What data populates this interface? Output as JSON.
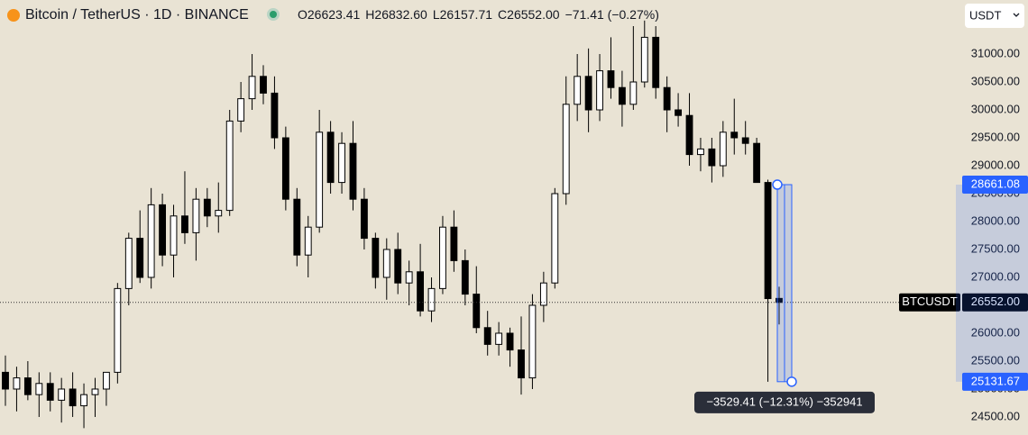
{
  "chart_data": {
    "type": "candlestick",
    "title": "Bitcoin / TetherUS · 1D · BINANCE",
    "ohlc_header": [
      {
        "key": "O",
        "value": "26623.41"
      },
      {
        "key": "H",
        "value": "26832.60"
      },
      {
        "key": "L",
        "value": "26157.71"
      },
      {
        "key": "C",
        "value": "26552.00"
      }
    ],
    "change": "−71.41 (−0.27%)",
    "currency": "USDT",
    "symbol": "BTCUSDT",
    "last_price": {
      "value": 26552,
      "label": "26552.00"
    },
    "up_color": "#ffffff",
    "down_color": "#000000",
    "open": [
      25300,
      25000,
      25200,
      24900,
      25100,
      24800,
      25000,
      24700,
      24900,
      25000,
      25300,
      26800,
      27700,
      27000,
      28300,
      27400,
      28100,
      27800,
      28400,
      28100,
      28200,
      29800,
      30200,
      30600,
      30300,
      29500,
      28400,
      27400,
      27900,
      29600,
      28700,
      29400,
      28400,
      27700,
      27000,
      27500,
      26900,
      27100,
      26400,
      26800,
      27900,
      27300,
      26700,
      26100,
      25800,
      26000,
      25700,
      25200,
      26500,
      26900,
      28500,
      30100,
      30600,
      30000,
      30700,
      30400,
      30100,
      30500,
      31300,
      30400,
      30000,
      29900,
      29200,
      29300,
      29000,
      29600,
      29500,
      29400,
      28700,
      26623.41
    ],
    "high": [
      25600,
      25400,
      25500,
      25300,
      25300,
      25200,
      25300,
      25100,
      25200,
      25300,
      26900,
      27800,
      28200,
      28600,
      28500,
      28300,
      28900,
      28600,
      28600,
      28700,
      30000,
      30500,
      31000,
      30800,
      30600,
      29700,
      28600,
      28100,
      30000,
      29800,
      29600,
      29800,
      28600,
      27800,
      27700,
      27800,
      27300,
      27600,
      27000,
      28100,
      28200,
      27500,
      27200,
      26400,
      26200,
      26100,
      26300,
      26700,
      27100,
      28600,
      30600,
      31000,
      31100,
      31000,
      31300,
      30700,
      31500,
      31600,
      31500,
      30600,
      30300,
      30300,
      29500,
      29500,
      29800,
      30200,
      29800,
      29500,
      28750,
      26832.6
    ],
    "low": [
      24700,
      24600,
      24800,
      24500,
      24600,
      24400,
      24500,
      24300,
      24500,
      24700,
      25100,
      26500,
      26900,
      26800,
      27200,
      27000,
      27600,
      27300,
      27900,
      27800,
      28100,
      29600,
      30000,
      30100,
      29300,
      28200,
      27200,
      27000,
      27800,
      28500,
      28500,
      28200,
      27500,
      26800,
      26600,
      26700,
      26500,
      26300,
      26200,
      26700,
      27100,
      26500,
      26000,
      25600,
      25600,
      25400,
      24900,
      25000,
      26200,
      26800,
      28300,
      29800,
      29600,
      29800,
      30200,
      29700,
      30000,
      30400,
      30200,
      29600,
      29700,
      29000,
      28900,
      28700,
      28800,
      29200,
      29200,
      28700,
      25130,
      26157.71
    ],
    "close": [
      25000,
      25200,
      24900,
      25100,
      24800,
      25000,
      24700,
      24900,
      25000,
      25300,
      26800,
      27700,
      27000,
      28300,
      27400,
      28100,
      27800,
      28400,
      28100,
      28200,
      29800,
      30200,
      30600,
      30300,
      29500,
      28400,
      27400,
      27900,
      29600,
      28700,
      29400,
      28400,
      27700,
      27000,
      27500,
      26900,
      27100,
      26400,
      26800,
      27900,
      27300,
      26700,
      26100,
      25800,
      26000,
      25700,
      25200,
      26500,
      26900,
      28500,
      30100,
      30600,
      30000,
      30700,
      30400,
      30100,
      30500,
      31300,
      30400,
      30000,
      29900,
      29200,
      29300,
      29000,
      29600,
      29500,
      29400,
      28700,
      26620,
      26552.0
    ],
    "ylim": [
      24177,
      31968
    ],
    "yticks": [
      {
        "value": 31000,
        "label": "31000.00"
      },
      {
        "value": 30500,
        "label": "30500.00"
      },
      {
        "value": 30000,
        "label": "30000.00"
      },
      {
        "value": 29500,
        "label": "29500.00"
      },
      {
        "value": 29000,
        "label": "29000.00"
      },
      {
        "value": 28500,
        "label": "28500.00"
      },
      {
        "value": 28000,
        "label": "28000.00"
      },
      {
        "value": 27500,
        "label": "27500.00"
      },
      {
        "value": 27000,
        "label": "27000.00"
      },
      {
        "value": 26500,
        "label": "26500.00"
      },
      {
        "value": 26000,
        "label": "26000.00"
      },
      {
        "value": 25500,
        "label": "25500.00"
      },
      {
        "value": 25000,
        "label": "25000.00"
      },
      {
        "value": 24500,
        "label": "24500.00"
      }
    ],
    "measure": {
      "from": {
        "value": 28661.08,
        "label": "28661.08"
      },
      "to": {
        "value": 25131.67,
        "label": "25131.67"
      },
      "label": "−3529.41 (−12.31%) −352941"
    }
  }
}
